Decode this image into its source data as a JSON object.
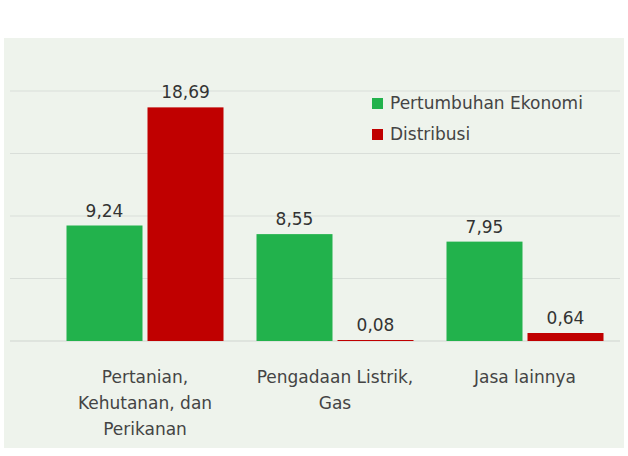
{
  "chart_data": {
    "type": "bar",
    "categories": [
      "Pertanian,\nKehutanan, dan\nPerikanan",
      "Pengadaan Listrik,\nGas",
      "Jasa lainnya"
    ],
    "series": [
      {
        "name": "Pertumbuhan Ekonomi",
        "color": "#22b24c",
        "values": [
          9.24,
          8.55,
          7.95
        ],
        "value_labels": [
          "9,24",
          "8,55",
          "7,95"
        ]
      },
      {
        "name": "Distribusi",
        "color": "#c00000",
        "values": [
          18.69,
          0.08,
          0.64
        ],
        "value_labels": [
          "18,69",
          "0,08",
          "0,64"
        ]
      }
    ],
    "ylim": [
      0,
      20
    ],
    "yticks": [
      0,
      5,
      10,
      15,
      20
    ],
    "grid": true,
    "legend": "top-right",
    "data_labels": true,
    "tick_labels": "x"
  }
}
